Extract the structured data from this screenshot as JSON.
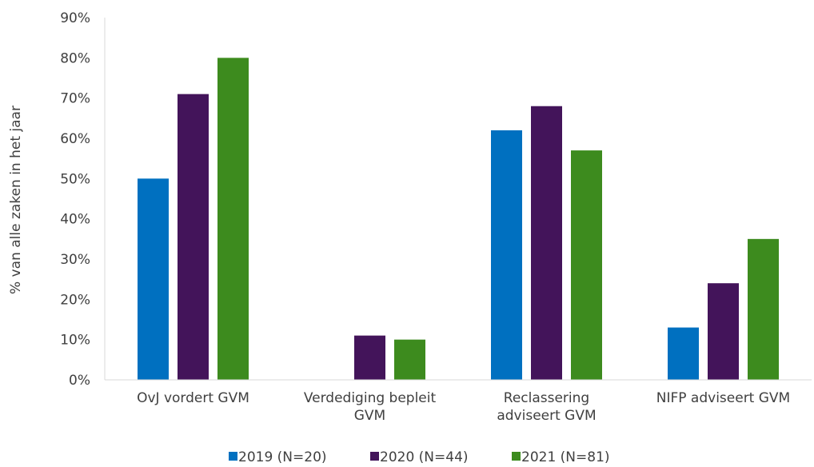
{
  "chart_data": {
    "type": "bar",
    "title": "",
    "xlabel": "",
    "ylabel": "% van alle zaken in het jaar",
    "ylim": [
      0,
      90
    ],
    "yticks": [
      "0%",
      "10%",
      "20%",
      "30%",
      "40%",
      "50%",
      "60%",
      "70%",
      "80%",
      "90%"
    ],
    "categories": [
      [
        "OvJ vordert GVM"
      ],
      [
        "Verdediging bepleit",
        "GVM"
      ],
      [
        "Reclassering",
        "adviseert GVM"
      ],
      [
        "NIFP adviseert GVM"
      ]
    ],
    "series": [
      {
        "name": "2019 (N=20)",
        "color": "#0070C0",
        "values": [
          50,
          0,
          62,
          13
        ]
      },
      {
        "name": "2020 (N=44)",
        "color": "#43145A",
        "values": [
          71,
          11,
          68,
          24
        ]
      },
      {
        "name": "2021 (N=81)",
        "color": "#3D8B1E",
        "values": [
          80,
          10,
          57,
          35
        ]
      }
    ],
    "grid": false,
    "legend_position": "bottom"
  }
}
